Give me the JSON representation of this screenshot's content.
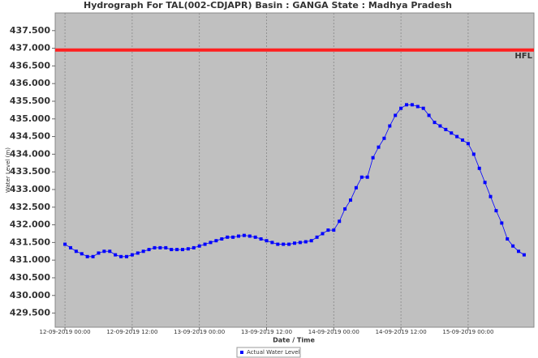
{
  "chart_data": {
    "type": "line",
    "title": "Hydrograph For TAL(002-CDJAPR) Basin : GANGA State : Madhya Pradesh",
    "x_label": "Date / Time",
    "y_label": "Water Level (m)",
    "x": [
      "12-09-2019 00:00",
      "12-09-2019 01:00",
      "12-09-2019 02:00",
      "12-09-2019 03:00",
      "12-09-2019 04:00",
      "12-09-2019 05:00",
      "12-09-2019 06:00",
      "12-09-2019 07:00",
      "12-09-2019 08:00",
      "12-09-2019 09:00",
      "12-09-2019 10:00",
      "12-09-2019 11:00",
      "12-09-2019 12:00",
      "12-09-2019 13:00",
      "12-09-2019 14:00",
      "12-09-2019 15:00",
      "12-09-2019 16:00",
      "12-09-2019 17:00",
      "12-09-2019 18:00",
      "12-09-2019 19:00",
      "12-09-2019 20:00",
      "12-09-2019 21:00",
      "12-09-2019 22:00",
      "12-09-2019 23:00",
      "13-09-2019 00:00",
      "13-09-2019 01:00",
      "13-09-2019 02:00",
      "13-09-2019 03:00",
      "13-09-2019 04:00",
      "13-09-2019 05:00",
      "13-09-2019 06:00",
      "13-09-2019 07:00",
      "13-09-2019 08:00",
      "13-09-2019 09:00",
      "13-09-2019 10:00",
      "13-09-2019 11:00",
      "13-09-2019 12:00",
      "13-09-2019 13:00",
      "13-09-2019 14:00",
      "13-09-2019 15:00",
      "13-09-2019 16:00",
      "13-09-2019 17:00",
      "13-09-2019 18:00",
      "13-09-2019 19:00",
      "13-09-2019 20:00",
      "13-09-2019 21:00",
      "13-09-2019 22:00",
      "13-09-2019 23:00",
      "14-09-2019 00:00",
      "14-09-2019 01:00",
      "14-09-2019 02:00",
      "14-09-2019 03:00",
      "14-09-2019 04:00",
      "14-09-2019 05:00",
      "14-09-2019 06:00",
      "14-09-2019 07:00",
      "14-09-2019 08:00",
      "14-09-2019 09:00",
      "14-09-2019 10:00",
      "14-09-2019 11:00",
      "14-09-2019 12:00",
      "14-09-2019 13:00",
      "14-09-2019 14:00",
      "14-09-2019 15:00",
      "14-09-2019 16:00",
      "14-09-2019 17:00",
      "14-09-2019 18:00",
      "14-09-2019 19:00",
      "14-09-2019 20:00",
      "14-09-2019 21:00",
      "14-09-2019 22:00",
      "14-09-2019 23:00",
      "15-09-2019 00:00",
      "15-09-2019 01:00",
      "15-09-2019 02:00",
      "15-09-2019 03:00",
      "15-09-2019 04:00",
      "15-09-2019 05:00",
      "15-09-2019 06:00",
      "15-09-2019 07:00",
      "15-09-2019 08:00",
      "15-09-2019 09:00",
      "15-09-2019 10:00"
    ],
    "series": [
      {
        "name": "Actual Water Level",
        "color": "#0000ff",
        "values": [
          431.45,
          431.35,
          431.25,
          431.18,
          431.1,
          431.1,
          431.2,
          431.25,
          431.25,
          431.15,
          431.1,
          431.1,
          431.15,
          431.2,
          431.25,
          431.3,
          431.35,
          431.35,
          431.35,
          431.3,
          431.3,
          431.3,
          431.32,
          431.35,
          431.4,
          431.45,
          431.5,
          431.55,
          431.6,
          431.65,
          431.65,
          431.68,
          431.7,
          431.68,
          431.65,
          431.6,
          431.55,
          431.5,
          431.45,
          431.45,
          431.45,
          431.48,
          431.5,
          431.52,
          431.55,
          431.65,
          431.75,
          431.85,
          431.85,
          432.1,
          432.45,
          432.7,
          433.05,
          433.35,
          433.35,
          433.9,
          434.2,
          434.45,
          434.8,
          435.1,
          435.3,
          435.4,
          435.4,
          435.35,
          435.3,
          435.1,
          434.9,
          434.8,
          434.7,
          434.6,
          434.5,
          434.4,
          434.3,
          434.0,
          433.6,
          433.2,
          432.8,
          432.4,
          432.05,
          431.6,
          431.4,
          431.25,
          431.15
        ]
      }
    ],
    "reference_line": {
      "value": 436.95,
      "label": "HFL",
      "color": "#ff2020"
    },
    "xlim": [
      "11-09-2019 22:15",
      "15-09-2019 11:45"
    ],
    "xticks": [
      "12-09-2019 00:00",
      "12-09-2019 12:00",
      "13-09-2019 00:00",
      "13-09-2019 12:00",
      "14-09-2019 00:00",
      "14-09-2019 12:00",
      "15-09-2019 00:00"
    ],
    "ylim": [
      429.1,
      438.0
    ],
    "yticks": [
      {
        "value": 429.5,
        "label": "429.500"
      },
      {
        "value": 430,
        "label": "430.000"
      },
      {
        "value": 430.5,
        "label": "430.500"
      },
      {
        "value": 431,
        "label": "431.000"
      },
      {
        "value": 431.5,
        "label": "431.500"
      },
      {
        "value": 432,
        "label": "432.000"
      },
      {
        "value": 432.5,
        "label": "432.500"
      },
      {
        "value": 433,
        "label": "433.000"
      },
      {
        "value": 433.5,
        "label": "433.500"
      },
      {
        "value": 434,
        "label": "434.000"
      },
      {
        "value": 434.5,
        "label": "434.500"
      },
      {
        "value": 435,
        "label": "435.000"
      },
      {
        "value": 435.5,
        "label": "435.500"
      },
      {
        "value": 436,
        "label": "436.000"
      },
      {
        "value": 436.5,
        "label": "436.500"
      },
      {
        "value": 437,
        "label": "437.000"
      },
      {
        "value": 437.5,
        "label": "437.500"
      }
    ],
    "grid": true,
    "plot_background": "#c0c0c0",
    "legend": "bottom"
  }
}
